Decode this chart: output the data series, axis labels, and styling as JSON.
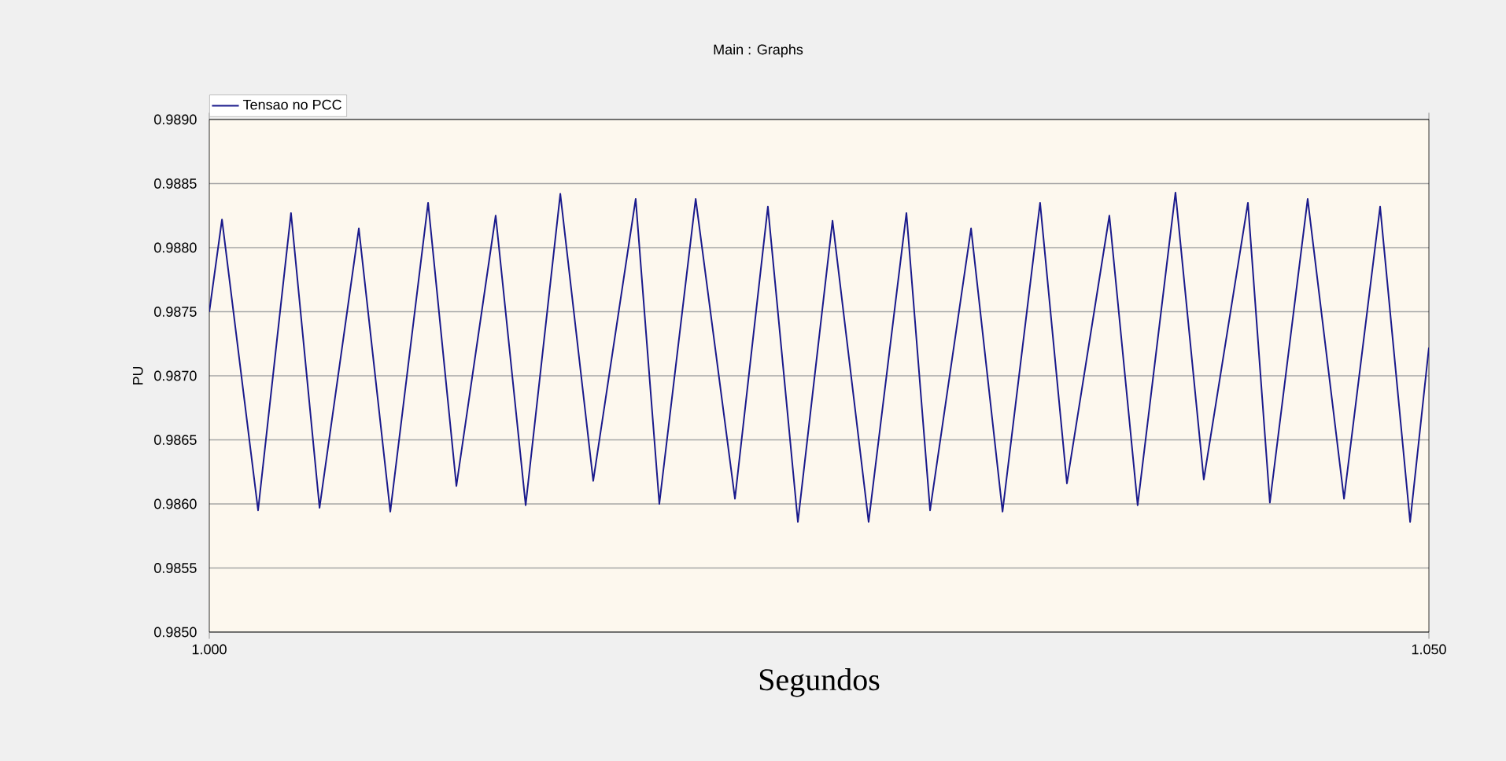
{
  "chart_data": {
    "type": "line",
    "title": "Main : Graphs",
    "xlabel": "Segundos",
    "ylabel": "PU",
    "x": [
      1.0,
      1.00052,
      1.002,
      1.00335,
      1.00452,
      1.00613,
      1.00742,
      1.00897,
      1.01013,
      1.01174,
      1.01297,
      1.01439,
      1.01574,
      1.01748,
      1.01845,
      1.01994,
      1.02155,
      1.0229,
      1.02413,
      1.02555,
      1.02703,
      1.02858,
      1.02955,
      1.03123,
      1.03252,
      1.03406,
      1.03516,
      1.0369,
      1.03806,
      1.03961,
      1.04077,
      1.04258,
      1.04348,
      1.04503,
      1.04652,
      1.048,
      1.04923,
      1.05
    ],
    "series": [
      {
        "name": "Tensao no PCC",
        "color": "#1a1a8c",
        "values": [
          0.9875,
          0.98822,
          0.98595,
          0.98827,
          0.98597,
          0.98815,
          0.98594,
          0.98835,
          0.98614,
          0.98825,
          0.98599,
          0.98842,
          0.98618,
          0.98838,
          0.986,
          0.98838,
          0.98604,
          0.98832,
          0.98586,
          0.98821,
          0.98586,
          0.98827,
          0.98595,
          0.98815,
          0.98594,
          0.98835,
          0.98616,
          0.98825,
          0.98599,
          0.98843,
          0.98619,
          0.98835,
          0.98601,
          0.98838,
          0.98604,
          0.98832,
          0.98586,
          0.98722
        ]
      }
    ],
    "xlim": [
      1.0,
      1.05
    ],
    "xticks": [
      {
        "value": 1.0,
        "label": "1.000"
      },
      {
        "value": 1.05,
        "label": "1.050"
      }
    ],
    "ylim": [
      0.985,
      0.989
    ],
    "yticks": [
      {
        "value": 0.985,
        "label": "0.9850"
      },
      {
        "value": 0.9855,
        "label": "0.9855"
      },
      {
        "value": 0.986,
        "label": "0.9860"
      },
      {
        "value": 0.9865,
        "label": "0.9865"
      },
      {
        "value": 0.987,
        "label": "0.9870"
      },
      {
        "value": 0.9875,
        "label": "0.9875"
      },
      {
        "value": 0.988,
        "label": "0.9880"
      },
      {
        "value": 0.9885,
        "label": "0.9885"
      },
      {
        "value": 0.989,
        "label": "0.9890"
      }
    ],
    "grid": "y",
    "legend": "top left",
    "marker": "none",
    "line_style": "solid"
  }
}
